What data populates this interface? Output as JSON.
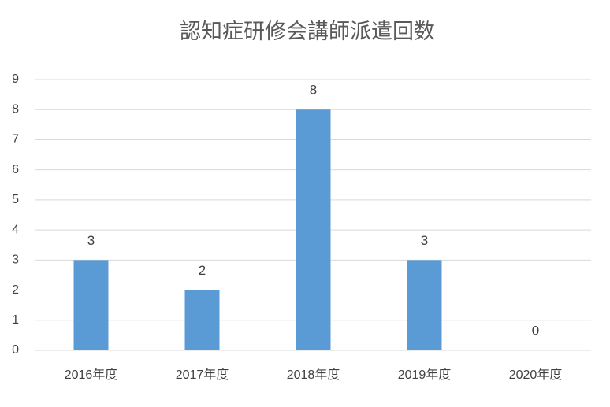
{
  "chart_data": {
    "type": "bar",
    "title": "認知症研修会講師派遣回数",
    "categories": [
      "2016年度",
      "2017年度",
      "2018年度",
      "2019年度",
      "2020年度"
    ],
    "values": [
      3,
      2,
      8,
      3,
      0
    ],
    "color": "#5b9bd5",
    "ylim": [
      0,
      9
    ],
    "yticks": [
      0,
      1,
      2,
      3,
      4,
      5,
      6,
      7,
      8,
      9
    ],
    "grid": true
  }
}
